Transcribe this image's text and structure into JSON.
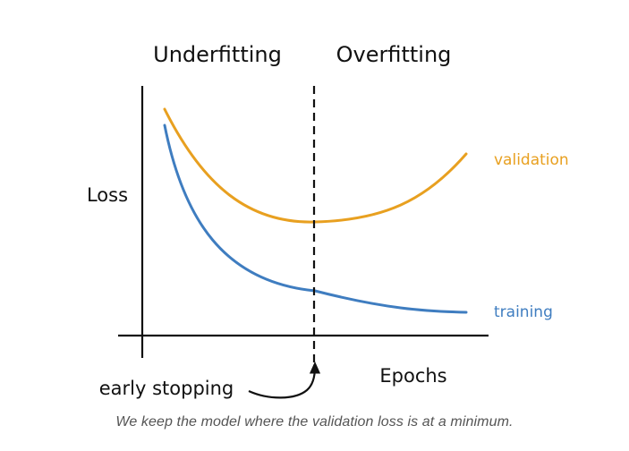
{
  "chart_data": {
    "type": "line",
    "title": "",
    "region_labels": [
      "Underfitting",
      "Overfitting"
    ],
    "xlabel": "Epochs",
    "ylabel": "Loss",
    "annotation": "early stopping",
    "series": [
      {
        "name": "validation",
        "color": "#E8A020"
      },
      {
        "name": "training",
        "color": "#3F7DC0"
      }
    ]
  },
  "caption": "We keep the model where the validation loss is at a minimum.",
  "colors": {
    "validation": "#E8A020",
    "training": "#3F7DC0",
    "ink": "#111111",
    "caption": "#555555"
  }
}
